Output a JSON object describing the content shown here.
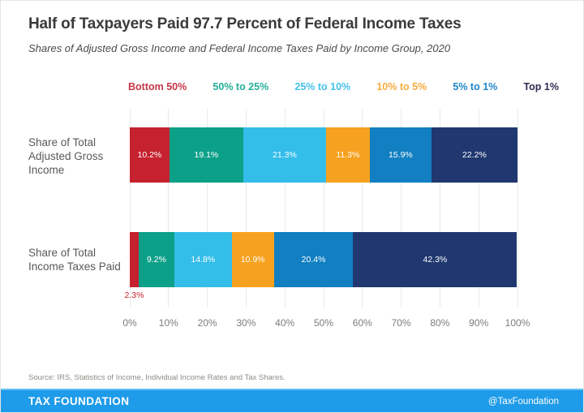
{
  "header": {
    "title": "Half of Taxpayers Paid 97.7 Percent of Federal Income Taxes",
    "subtitle": "Shares of Adjusted Gross Income and Federal Income Taxes Paid by Income Group, 2020"
  },
  "chart_data": {
    "type": "bar",
    "stacked": true,
    "orientation": "horizontal",
    "grid": true,
    "legend_position": "top",
    "xlim": [
      0,
      100
    ],
    "x_ticks": [
      "0%",
      "10%",
      "20%",
      "30%",
      "40%",
      "50%",
      "60%",
      "70%",
      "80%",
      "90%",
      "100%"
    ],
    "groups": [
      {
        "label": "Bottom 50%",
        "color": "#c5212f",
        "legend_color": "#c63748"
      },
      {
        "label": "50% to 25%",
        "color": "#0da089",
        "legend_color": "#25af99"
      },
      {
        "label": "25% to 10%",
        "color": "#33bde9",
        "legend_color": "#46c2ea"
      },
      {
        "label": "10% to 5%",
        "color": "#f6a11f",
        "legend_color": "#f7ac40"
      },
      {
        "label": "5% to 1%",
        "color": "#117fc1",
        "legend_color": "#1e86c8"
      },
      {
        "label": "Top 1%",
        "color": "#20386f",
        "legend_color": "#2f2f52"
      }
    ],
    "rows": [
      {
        "label": "Share of Total Adjusted Gross Income",
        "segments": [
          {
            "value": 10.2,
            "label": "10.2%",
            "label_inside": true
          },
          {
            "value": 19.1,
            "label": "19.1%",
            "label_inside": true
          },
          {
            "value": 21.3,
            "label": "21.3%",
            "label_inside": true
          },
          {
            "value": 11.3,
            "label": "11.3%",
            "label_inside": true
          },
          {
            "value": 15.9,
            "label": "15.9%",
            "label_inside": true
          },
          {
            "value": 22.2,
            "label": "22.2%",
            "label_inside": true
          }
        ]
      },
      {
        "label": "Share of Total Income Taxes Paid",
        "segments": [
          {
            "value": 2.3,
            "label": "2.3%",
            "label_inside": false
          },
          {
            "value": 9.2,
            "label": "9.2%",
            "label_inside": true
          },
          {
            "value": 14.8,
            "label": "14.8%",
            "label_inside": true
          },
          {
            "value": 10.9,
            "label": "10.9%",
            "label_inside": true
          },
          {
            "value": 20.4,
            "label": "20.4%",
            "label_inside": true
          },
          {
            "value": 42.3,
            "label": "42.3%",
            "label_inside": true
          }
        ]
      }
    ]
  },
  "footer": {
    "source": "Source: IRS, Statistics of Income, Individual Income Rates and Tax Shares.",
    "brand": "TAX FOUNDATION",
    "handle": "@TaxFoundation",
    "bar_color": "#1e9be9"
  }
}
